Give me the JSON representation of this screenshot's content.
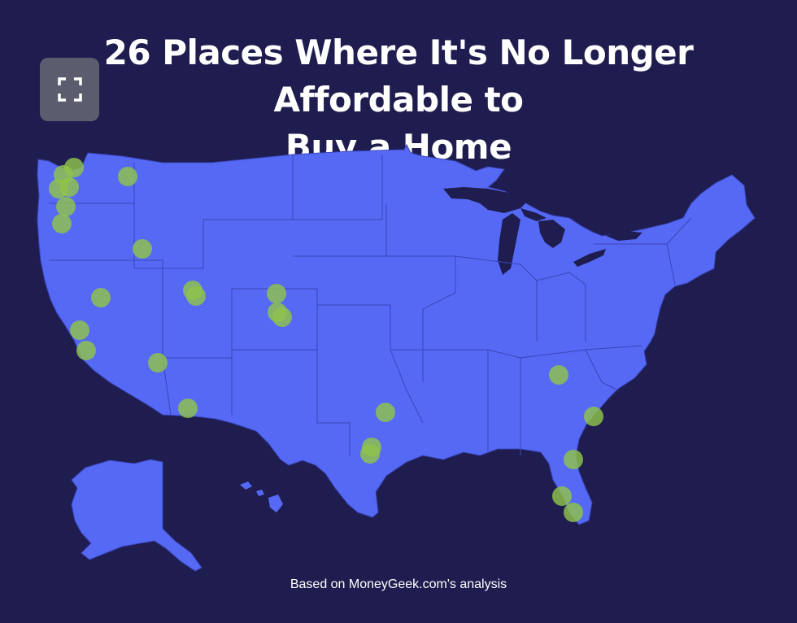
{
  "title": {
    "line1": "26 Places Where It's No Longer Affordable to",
    "line2": "Buy a Home"
  },
  "caption": "Based on MoneyGeek.com's analysis",
  "expand_button": {
    "icon": "expand-icon"
  },
  "colors": {
    "background": "#1f1d4f",
    "land": "#5569f5",
    "border": "#3a45b8",
    "marker": "#8fc34a",
    "text": "#ffffff"
  },
  "marker_count": 26
}
